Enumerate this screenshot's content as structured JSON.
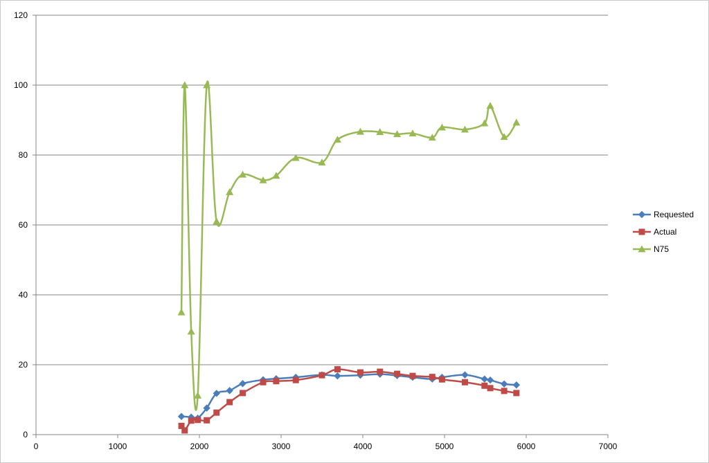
{
  "chart_data": {
    "type": "scatter",
    "title": "",
    "xlabel": "",
    "ylabel": "",
    "xlim": [
      0,
      7000
    ],
    "ylim": [
      0,
      120
    ],
    "x_ticks": [
      0,
      1000,
      2000,
      3000,
      4000,
      5000,
      6000,
      7000
    ],
    "y_ticks": [
      0,
      20,
      40,
      60,
      80,
      100,
      120
    ],
    "grid": "horizontal",
    "legend_position": "right",
    "smoothed_lines": true,
    "series": [
      {
        "name": "Requested",
        "color": "#4a7ebb",
        "marker": "diamond",
        "points": [
          [
            1780,
            5.2
          ],
          [
            1900,
            5.0
          ],
          [
            1980,
            4.7
          ],
          [
            2090,
            7.6
          ],
          [
            2210,
            11.8
          ],
          [
            2370,
            12.6
          ],
          [
            2530,
            14.6
          ],
          [
            2780,
            15.7
          ],
          [
            2940,
            16.0
          ],
          [
            3180,
            16.4
          ],
          [
            3500,
            17.1
          ],
          [
            3690,
            16.8
          ],
          [
            3970,
            17.0
          ],
          [
            4210,
            17.3
          ],
          [
            4420,
            16.9
          ],
          [
            4610,
            16.4
          ],
          [
            4850,
            15.9
          ],
          [
            4970,
            16.4
          ],
          [
            5250,
            17.1
          ],
          [
            5490,
            15.9
          ],
          [
            5560,
            15.6
          ],
          [
            5730,
            14.5
          ],
          [
            5880,
            14.2
          ]
        ]
      },
      {
        "name": "Actual",
        "color": "#be4b48",
        "marker": "square",
        "points": [
          [
            1780,
            2.5
          ],
          [
            1820,
            1.2
          ],
          [
            1900,
            4.0
          ],
          [
            1980,
            4.2
          ],
          [
            2090,
            4.1
          ],
          [
            2210,
            6.3
          ],
          [
            2370,
            9.3
          ],
          [
            2530,
            11.9
          ],
          [
            2780,
            15.0
          ],
          [
            2940,
            15.3
          ],
          [
            3180,
            15.6
          ],
          [
            3500,
            17.0
          ],
          [
            3690,
            18.7
          ],
          [
            3970,
            17.8
          ],
          [
            4210,
            18.0
          ],
          [
            4420,
            17.4
          ],
          [
            4610,
            16.8
          ],
          [
            4850,
            16.5
          ],
          [
            4970,
            15.8
          ],
          [
            5250,
            15.0
          ],
          [
            5490,
            14.0
          ],
          [
            5560,
            13.3
          ],
          [
            5730,
            12.5
          ],
          [
            5880,
            11.9
          ]
        ]
      },
      {
        "name": "N75",
        "color": "#98b954",
        "marker": "triangle",
        "points": [
          [
            1780,
            35.0
          ],
          [
            1820,
            100.0
          ],
          [
            1900,
            29.5
          ],
          [
            1980,
            11.2
          ],
          [
            2090,
            100.0
          ],
          [
            2210,
            61.0
          ],
          [
            2370,
            69.4
          ],
          [
            2530,
            74.4
          ],
          [
            2780,
            72.8
          ],
          [
            2940,
            74.1
          ],
          [
            3180,
            79.2
          ],
          [
            3500,
            77.9
          ],
          [
            3690,
            84.4
          ],
          [
            3970,
            86.7
          ],
          [
            4210,
            86.6
          ],
          [
            4420,
            86.0
          ],
          [
            4610,
            86.2
          ],
          [
            4850,
            85.0
          ],
          [
            4970,
            87.9
          ],
          [
            5250,
            87.3
          ],
          [
            5490,
            89.1
          ],
          [
            5560,
            94.1
          ],
          [
            5730,
            85.2
          ],
          [
            5880,
            89.3
          ]
        ]
      }
    ]
  }
}
